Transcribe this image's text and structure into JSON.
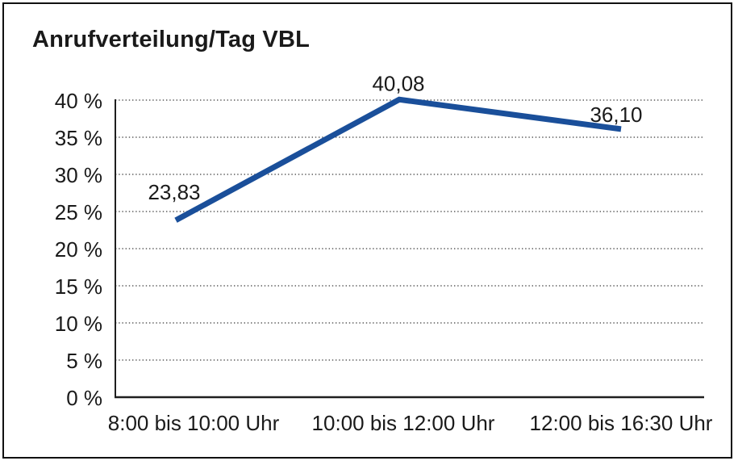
{
  "window": {
    "background": "#ffffff",
    "frame_border_color": "#111111"
  },
  "chart_data": {
    "type": "line",
    "title": "Anrufverteilung/Tag VBL",
    "categories": [
      "8:00 bis 10:00 Uhr",
      "10:00 bis 12:00 Uhr",
      "12:00 bis 16:30 Uhr"
    ],
    "values": [
      23.83,
      40.08,
      36.1
    ],
    "point_labels": [
      "23,83",
      "40,08",
      "36,10"
    ],
    "xlabel": "",
    "ylabel": "",
    "ylim": [
      0,
      40
    ],
    "y_tick_step": 5,
    "y_tick_values": [
      0,
      5,
      10,
      15,
      20,
      25,
      30,
      35,
      40
    ],
    "y_tick_labels": [
      "0 %",
      "5 %",
      "10 %",
      "15 %",
      "20 %",
      "25 %",
      "30 %",
      "35 %",
      "40 %"
    ],
    "grid": "horizontal-dotted",
    "legend": "none",
    "colors": {
      "line": "#1a4f9a",
      "text": "#1a1a1a",
      "grid": "#5a5a5a",
      "axis": "#1f1f1f"
    }
  }
}
